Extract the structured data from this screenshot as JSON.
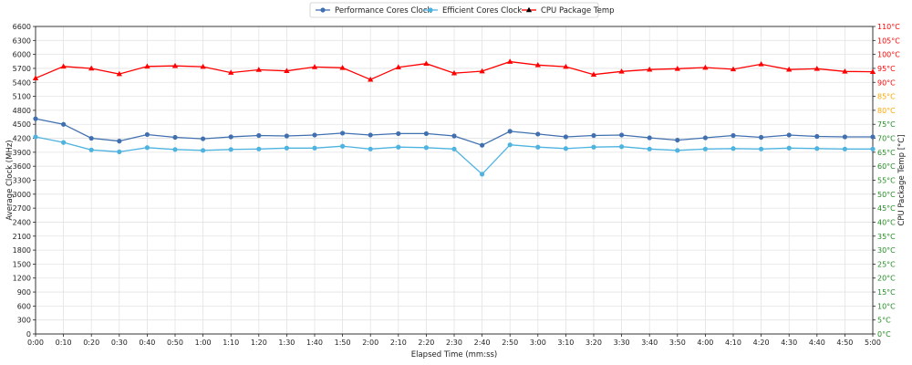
{
  "chart_data": {
    "type": "line",
    "title": "",
    "xlabel": "Elapsed Time (mm:ss)",
    "ylabel_left": "Average Clock (MHz)",
    "ylabel_right": "CPU Package Temp [°C]",
    "x": [
      "0:00",
      "0:10",
      "0:20",
      "0:30",
      "0:40",
      "0:50",
      "1:00",
      "1:10",
      "1:20",
      "1:30",
      "1:40",
      "1:50",
      "2:00",
      "2:10",
      "2:20",
      "2:30",
      "2:40",
      "2:50",
      "3:00",
      "3:10",
      "3:20",
      "3:30",
      "3:40",
      "3:50",
      "4:00",
      "4:10",
      "4:20",
      "4:30",
      "4:40",
      "4:50",
      "5:00"
    ],
    "ylim_left": [
      0,
      6600
    ],
    "yticks_left": [
      "0",
      "300",
      "600",
      "900",
      "1200",
      "1500",
      "1800",
      "2100",
      "2400",
      "2700",
      "3000",
      "3300",
      "3600",
      "3900",
      "4200",
      "4500",
      "4800",
      "5100",
      "5400",
      "5700",
      "6000",
      "6300",
      "6600"
    ],
    "ylim_right": [
      0,
      110
    ],
    "yticks_right": [
      "0°C",
      "5°C",
      "10°C",
      "15°C",
      "20°C",
      "25°C",
      "30°C",
      "35°C",
      "40°C",
      "45°C",
      "50°C",
      "55°C",
      "60°C",
      "65°C",
      "70°C",
      "75°C",
      "80°C",
      "85°C",
      "90°C",
      "95°C",
      "100°C",
      "105°C",
      "110°C"
    ],
    "right_tick_colors": {
      "green_below": 80,
      "orange_from": 80,
      "red_from": 90,
      "green": "#228B22",
      "orange": "#FFA500",
      "red": "#FF0000"
    },
    "grid": true,
    "legend_position": "top-center",
    "series": [
      {
        "name": "Performance Cores Clock",
        "axis": "left",
        "color": "#4170b0",
        "marker": "circle",
        "values": [
          4620,
          4500,
          4200,
          4140,
          4280,
          4220,
          4190,
          4230,
          4260,
          4250,
          4270,
          4310,
          4270,
          4300,
          4300,
          4250,
          4050,
          4350,
          4290,
          4230,
          4260,
          4270,
          4210,
          4160,
          4210,
          4260,
          4220,
          4270,
          4240,
          4230,
          4230
        ]
      },
      {
        "name": "Efficient Cores Clock",
        "axis": "left",
        "color": "#4fb3e0",
        "marker": "circle",
        "values": [
          4230,
          4110,
          3950,
          3910,
          4000,
          3960,
          3940,
          3960,
          3970,
          3990,
          3990,
          4030,
          3970,
          4010,
          4000,
          3970,
          3430,
          4060,
          4010,
          3980,
          4010,
          4020,
          3970,
          3940,
          3970,
          3980,
          3970,
          3990,
          3980,
          3970,
          3970
        ]
      },
      {
        "name": "CPU Package Temp",
        "axis": "right",
        "color": "#ff0000",
        "legend_color": "#000000",
        "marker": "triangle",
        "values": [
          91.5,
          95.7,
          95.0,
          93.0,
          95.7,
          95.9,
          95.6,
          93.5,
          94.5,
          94.1,
          95.5,
          95.2,
          91.0,
          95.4,
          96.7,
          93.3,
          94.0,
          97.4,
          96.2,
          95.6,
          92.8,
          93.9,
          94.6,
          94.9,
          95.3,
          94.7,
          96.5,
          94.6,
          94.9,
          93.9,
          93.8
        ]
      }
    ]
  }
}
